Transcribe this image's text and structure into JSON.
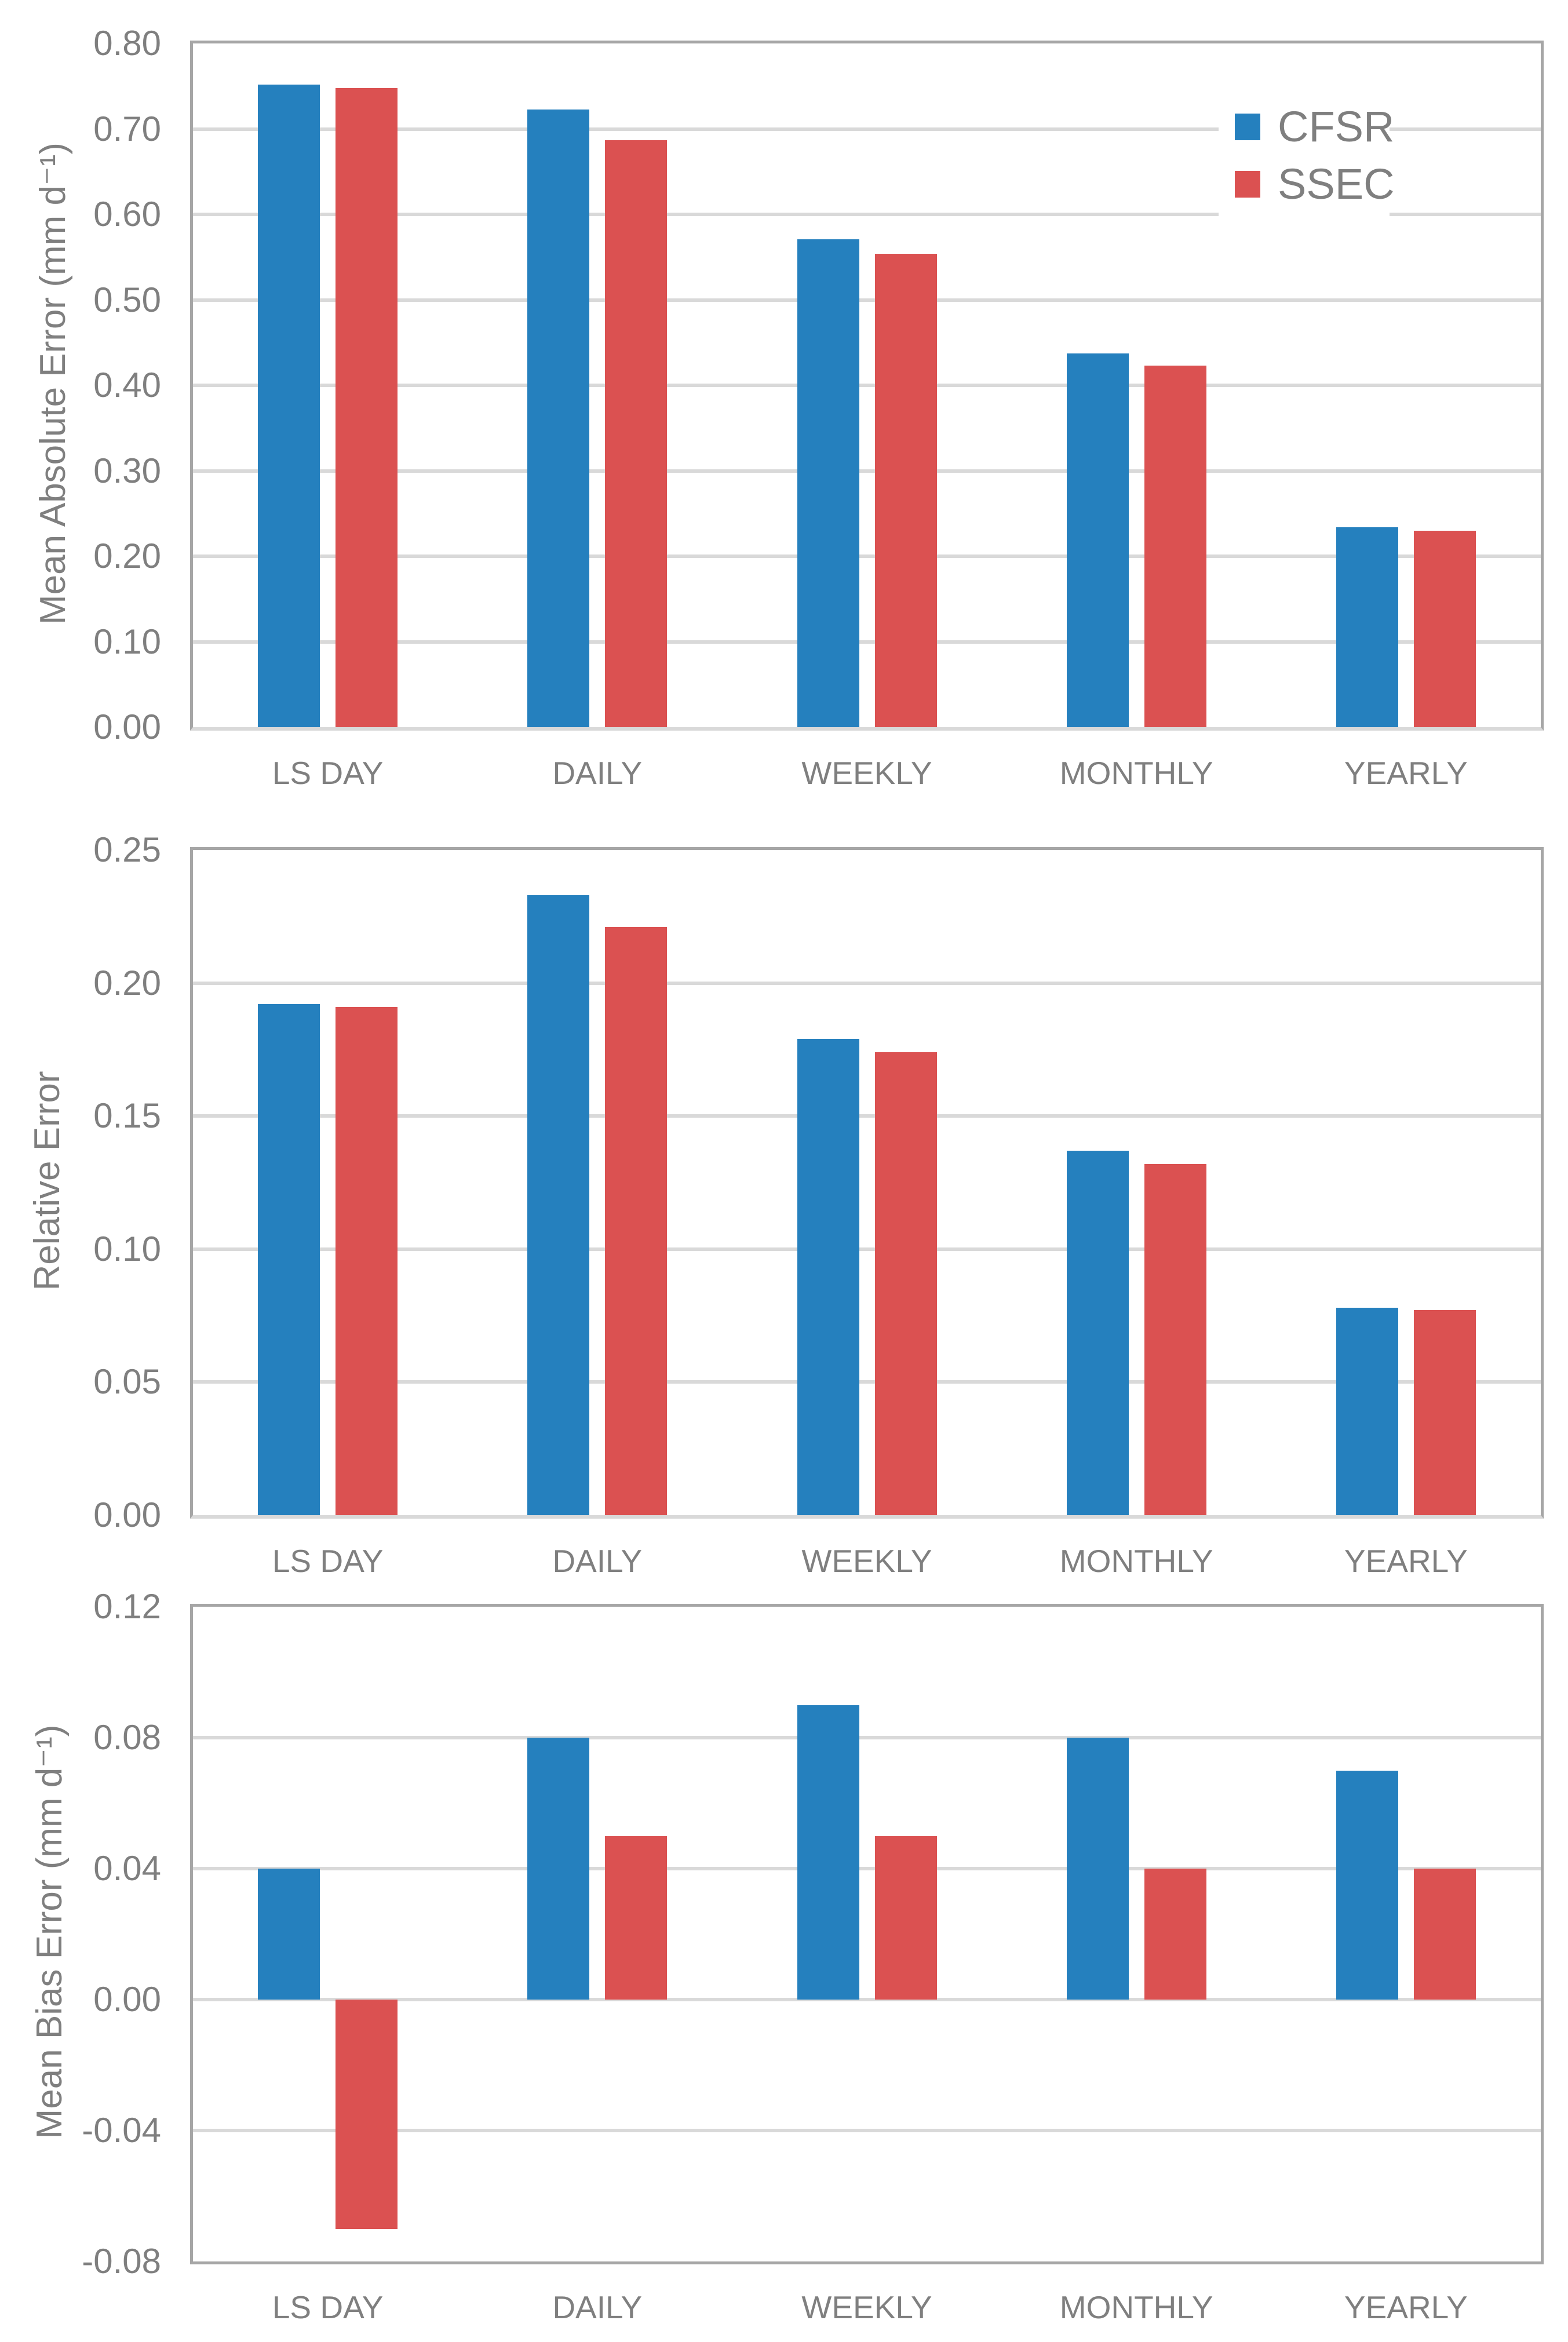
{
  "colors": {
    "cfsr_blue": "#2580BE",
    "ssec_red": "#DB5151",
    "gridline": "#D9D9D9",
    "plot_border": "#A6A6A6",
    "text_gray": "#7F7F7F"
  },
  "legend": {
    "position": "top-right-of-first-chart",
    "items": [
      {
        "label": "CFSR",
        "color": "#2580BE"
      },
      {
        "label": "SSEC",
        "color": "#DB5151"
      }
    ]
  },
  "chart_data": [
    {
      "type": "bar",
      "name": "mean-absolute-error",
      "title": "",
      "xlabel": "",
      "ylabel": "Mean Absolute Error (mm d⁻¹)",
      "ymin": 0.0,
      "ymax": 0.8,
      "grid": true,
      "tick_values": [
        0.8,
        0.7,
        0.6,
        0.5,
        0.4,
        0.3,
        0.2,
        0.1,
        0.0
      ],
      "tick_labels": [
        "0.80",
        "0.70",
        "0.60",
        "0.50",
        "0.40",
        "0.30",
        "0.20",
        "0.10",
        "0.00"
      ],
      "categories": [
        "LS DAY",
        "DAILY",
        "WEEKLY",
        "MONTHLY",
        "YEARLY"
      ],
      "series": [
        {
          "name": "CFSR",
          "color": "#2580BE",
          "values": [
            0.752,
            0.723,
            0.571,
            0.437,
            0.234
          ]
        },
        {
          "name": "SSEC",
          "color": "#DB5151",
          "values": [
            0.748,
            0.687,
            0.554,
            0.423,
            0.23
          ]
        }
      ]
    },
    {
      "type": "bar",
      "name": "relative-error",
      "title": "",
      "xlabel": "",
      "ylabel": "Relative Error",
      "ymin": 0.0,
      "ymax": 0.25,
      "grid": true,
      "tick_values": [
        0.25,
        0.2,
        0.15,
        0.1,
        0.05,
        0.0
      ],
      "tick_labels": [
        "0.25",
        "0.20",
        "0.15",
        "0.10",
        "0.05",
        "0.00"
      ],
      "categories": [
        "LS DAY",
        "DAILY",
        "WEEKLY",
        "MONTHLY",
        "YEARLY"
      ],
      "series": [
        {
          "name": "CFSR",
          "color": "#2580BE",
          "values": [
            0.192,
            0.233,
            0.179,
            0.137,
            0.078
          ]
        },
        {
          "name": "SSEC",
          "color": "#DB5151",
          "values": [
            0.191,
            0.221,
            0.174,
            0.132,
            0.077
          ]
        }
      ]
    },
    {
      "type": "bar",
      "name": "mean-bias-error",
      "title": "",
      "xlabel": "",
      "ylabel": "Mean Bias Error (mm d⁻¹)",
      "ymin": -0.08,
      "ymax": 0.12,
      "grid": true,
      "tick_values": [
        0.12,
        0.08,
        0.04,
        0.0,
        -0.04,
        -0.08
      ],
      "tick_labels": [
        "0.12",
        "0.08",
        "0.04",
        "0.00",
        "-0.04",
        "-0.08"
      ],
      "categories": [
        "LS DAY",
        "DAILY",
        "WEEKLY",
        "MONTHLY",
        "YEARLY"
      ],
      "series": [
        {
          "name": "CFSR",
          "color": "#2580BE",
          "values": [
            0.04,
            0.08,
            0.09,
            0.08,
            0.07
          ]
        },
        {
          "name": "SSEC",
          "color": "#DB5151",
          "values": [
            -0.07,
            0.05,
            0.05,
            0.04,
            0.04
          ]
        }
      ]
    }
  ]
}
